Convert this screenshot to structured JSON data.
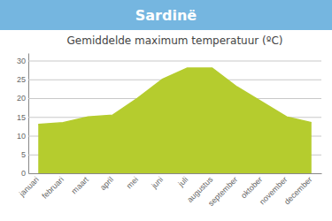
{
  "chart_data": {
    "type": "area",
    "title": "Sardinë",
    "subtitle": "Gemiddelde maximum temperatuur (ºC)",
    "categories": [
      "januari",
      "februari",
      "maart",
      "april",
      "mei",
      "juni",
      "juli",
      "augustus",
      "september",
      "oktober",
      "november",
      "december"
    ],
    "values": [
      13,
      13.5,
      15,
      15.5,
      20,
      25,
      28,
      28,
      23,
      19,
      15,
      13.5
    ],
    "color": "#b5cc2e",
    "ylim": [
      0,
      32
    ],
    "yticks": [
      0,
      5,
      10,
      15,
      20,
      25,
      30
    ],
    "grid": true
  }
}
